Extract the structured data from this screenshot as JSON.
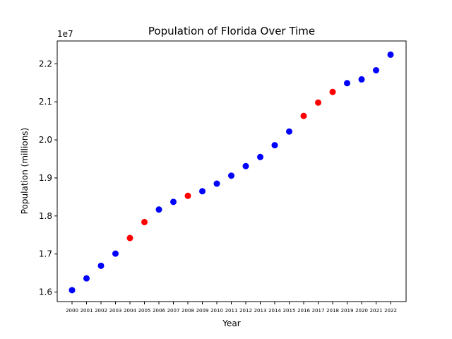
{
  "chart_data": {
    "type": "scatter",
    "title": "Population of Florida Over Time",
    "xlabel": "Year",
    "ylabel": "Population (millions)",
    "y_offset_label": "1e7",
    "ylim": [
      15750000,
      22600000
    ],
    "yticks": [
      16000000,
      17000000,
      18000000,
      19000000,
      20000000,
      21000000,
      22000000
    ],
    "ytick_labels": [
      "1.6",
      "1.7",
      "1.8",
      "1.9",
      "2.0",
      "2.1",
      "2.2"
    ],
    "grid": false,
    "colors": {
      "normal": "#0000ff",
      "highlight": "#ff0000"
    },
    "points": [
      {
        "x": "2000",
        "y": 16050000,
        "color": "#0000ff"
      },
      {
        "x": "2001",
        "y": 16360000,
        "color": "#0000ff"
      },
      {
        "x": "2002",
        "y": 16690000,
        "color": "#0000ff"
      },
      {
        "x": "2003",
        "y": 17010000,
        "color": "#0000ff"
      },
      {
        "x": "2004",
        "y": 17420000,
        "color": "#ff0000"
      },
      {
        "x": "2005",
        "y": 17840000,
        "color": "#ff0000"
      },
      {
        "x": "2006",
        "y": 18170000,
        "color": "#0000ff"
      },
      {
        "x": "2007",
        "y": 18370000,
        "color": "#0000ff"
      },
      {
        "x": "2008",
        "y": 18530000,
        "color": "#ff0000"
      },
      {
        "x": "2009",
        "y": 18650000,
        "color": "#0000ff"
      },
      {
        "x": "2010",
        "y": 18850000,
        "color": "#0000ff"
      },
      {
        "x": "2011",
        "y": 19060000,
        "color": "#0000ff"
      },
      {
        "x": "2012",
        "y": 19310000,
        "color": "#0000ff"
      },
      {
        "x": "2013",
        "y": 19550000,
        "color": "#0000ff"
      },
      {
        "x": "2014",
        "y": 19860000,
        "color": "#0000ff"
      },
      {
        "x": "2015",
        "y": 20220000,
        "color": "#0000ff"
      },
      {
        "x": "2016",
        "y": 20630000,
        "color": "#ff0000"
      },
      {
        "x": "2017",
        "y": 20980000,
        "color": "#ff0000"
      },
      {
        "x": "2018",
        "y": 21260000,
        "color": "#ff0000"
      },
      {
        "x": "2019",
        "y": 21490000,
        "color": "#0000ff"
      },
      {
        "x": "2020",
        "y": 21590000,
        "color": "#0000ff"
      },
      {
        "x": "2021",
        "y": 21830000,
        "color": "#0000ff"
      },
      {
        "x": "2022",
        "y": 22240000,
        "color": "#0000ff"
      }
    ]
  }
}
